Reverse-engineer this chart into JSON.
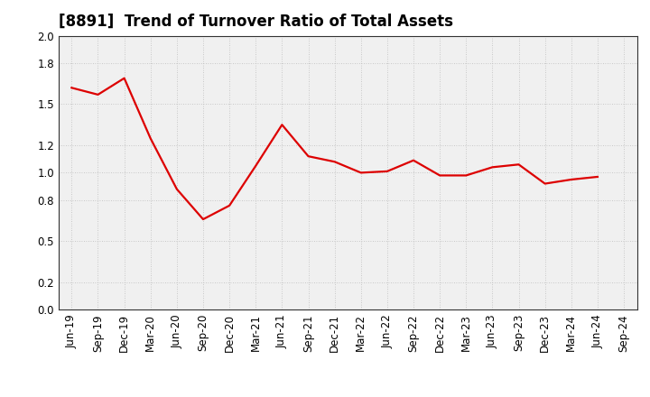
{
  "title": "[8891]  Trend of Turnover Ratio of Total Assets",
  "labels": [
    "Jun-19",
    "Sep-19",
    "Dec-19",
    "Mar-20",
    "Jun-20",
    "Sep-20",
    "Dec-20",
    "Mar-21",
    "Jun-21",
    "Sep-21",
    "Dec-21",
    "Mar-22",
    "Jun-22",
    "Sep-22",
    "Dec-22",
    "Mar-23",
    "Jun-23",
    "Sep-23",
    "Dec-23",
    "Mar-24",
    "Jun-24",
    "Sep-24"
  ],
  "values": [
    1.62,
    1.57,
    1.69,
    1.25,
    0.88,
    0.66,
    0.76,
    1.05,
    1.35,
    1.12,
    1.08,
    1.0,
    1.01,
    1.09,
    0.98,
    0.98,
    1.04,
    1.06,
    0.92,
    0.95,
    0.97,
    null
  ],
  "line_color": "#dd0000",
  "background_color": "#ffffff",
  "plot_bg_color": "#f0f0f0",
  "grid_color": "#bbbbbb",
  "ylim": [
    0.0,
    2.0
  ],
  "yticks": [
    0.0,
    0.2,
    0.5,
    0.8,
    1.0,
    1.2,
    1.5,
    1.8,
    2.0
  ],
  "title_fontsize": 12,
  "tick_fontsize": 8.5,
  "line_width": 1.6
}
